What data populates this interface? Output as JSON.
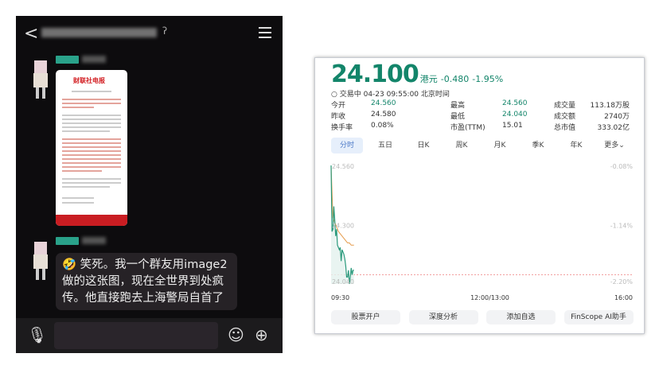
{
  "chat": {
    "message": "🤣 笑死。我一个群友用image2做的这张图，现在全世界到处疯传。他直接跑去上海警局自首了",
    "news_logo": "财联社电报"
  },
  "stock": {
    "price": "24.100",
    "unit": "港元",
    "change": "-0.480",
    "change_pct": "-1.95%",
    "status": "交易中 04-23 09:55:00 北京时间",
    "stats": [
      {
        "label": "今开",
        "value": "24.560",
        "color": "green"
      },
      {
        "label": "昨收",
        "value": "24.580"
      },
      {
        "label": "换手率",
        "value": "0.08%"
      },
      {
        "label": "最高",
        "value": "24.560",
        "color": "green"
      },
      {
        "label": "最低",
        "value": "24.040",
        "color": "green"
      },
      {
        "label": "市盈(TTM)",
        "value": "15.01"
      },
      {
        "label": "成交量",
        "value": "113.18万股"
      },
      {
        "label": "成交额",
        "value": "2740万"
      },
      {
        "label": "总市值",
        "value": "333.02亿"
      }
    ],
    "tabs": [
      "分时",
      "五日",
      "日K",
      "周K",
      "月K",
      "季K",
      "年K",
      "更多⌄"
    ],
    "active_tab": "分时",
    "buttons": [
      "股票开户",
      "深度分析",
      "添加自选",
      "FinScope AI助手"
    ],
    "colors": {
      "up_down": "#13856a",
      "avg": "#e59a4a"
    }
  },
  "chart_data": {
    "type": "line",
    "y_left_ticks": [
      "24.560",
      "24.300",
      "24.040"
    ],
    "y_right_ticks": [
      "-0.08%",
      "-1.14%",
      "-2.20%"
    ],
    "x_ticks": [
      "09:30",
      "12:00/13:00",
      "16:00"
    ],
    "ylim": [
      24.04,
      24.56
    ],
    "series": [
      {
        "role": "price",
        "minutes": [
          0,
          1,
          2,
          3,
          4,
          5,
          6,
          7,
          8,
          9,
          10,
          11,
          12,
          13,
          14,
          15,
          16,
          17,
          18,
          19,
          20,
          21,
          22,
          23,
          24,
          25
        ],
        "values": [
          24.56,
          24.27,
          24.28,
          24.38,
          24.32,
          24.25,
          24.28,
          24.21,
          24.2,
          24.19,
          24.2,
          24.14,
          24.19,
          24.18,
          24.17,
          24.15,
          24.12,
          24.07,
          24.07,
          24.1,
          24.04,
          24.07,
          24.11,
          24.08,
          24.1,
          24.1
        ]
      },
      {
        "role": "average",
        "minutes": [
          0,
          2,
          4,
          6,
          8,
          10,
          12,
          14,
          16,
          18,
          20,
          22,
          25
        ],
        "values": [
          24.56,
          24.33,
          24.31,
          24.29,
          24.27,
          24.26,
          24.25,
          24.24,
          24.23,
          24.22,
          24.22,
          24.21,
          24.21
        ]
      }
    ],
    "reference_line": 24.08
  }
}
